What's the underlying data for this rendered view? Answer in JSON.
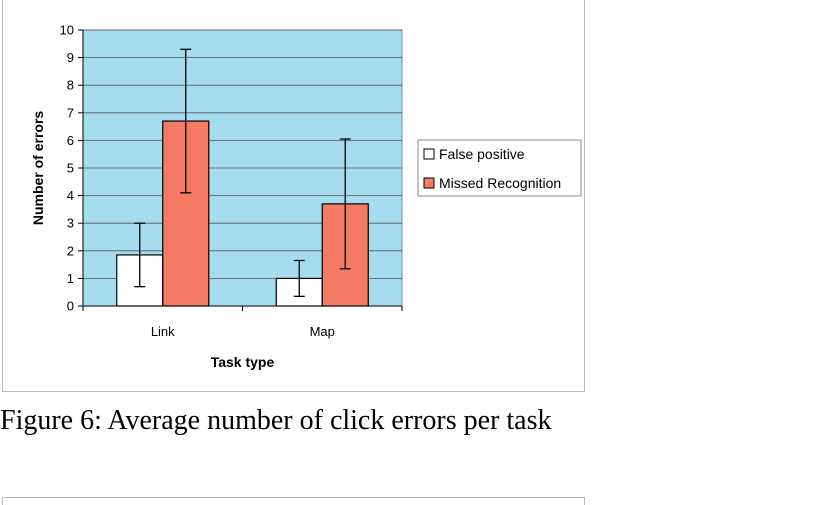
{
  "caption": "Figure 6: Average number of click errors per task",
  "chart_data": {
    "type": "bar",
    "categories": [
      "Link",
      "Map"
    ],
    "series": [
      {
        "name": "False positive",
        "color": "#ffffff",
        "values": [
          1.85,
          1.0
        ],
        "error_low": [
          0.7,
          0.35
        ],
        "error_high": [
          3.0,
          1.65
        ]
      },
      {
        "name": "Missed Recognition",
        "color": "#f47a63",
        "values": [
          6.7,
          3.7
        ],
        "error_low": [
          4.1,
          1.35
        ],
        "error_high": [
          9.3,
          6.05
        ]
      }
    ],
    "xlabel": "Task type",
    "ylabel": "Number of errors",
    "ylim": [
      0,
      10
    ],
    "yticks": [
      "0",
      "1",
      "2",
      "3",
      "4",
      "5",
      "6",
      "7",
      "8",
      "9",
      "10"
    ],
    "plot_background": "#a6dcef",
    "grid": true,
    "legend_position": "right"
  }
}
